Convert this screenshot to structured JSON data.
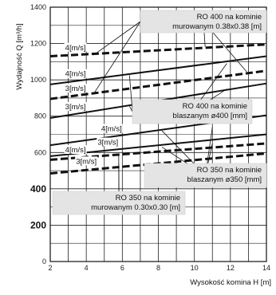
{
  "chart_data": {
    "type": "line",
    "xlabel": "Wysokość komina H [m]",
    "ylabel": "Wydajność Q [m³/h]",
    "xlim": [
      2,
      14
    ],
    "ylim": [
      0,
      1400
    ],
    "x_ticks": [
      "2",
      "4",
      "6",
      "8",
      "10",
      "12",
      "14"
    ],
    "y_ticks": [
      "0",
      "200",
      "400",
      "600",
      "800",
      "1000",
      "1200",
      "1400"
    ],
    "y_ticks_bold": [
      "200",
      "400"
    ],
    "grid": true,
    "x": [
      2,
      14
    ],
    "series": [
      {
        "group": "RO 400 na kominie murowanym 0.38x0.38 [m]",
        "label": "4[m/s]",
        "style": "dashed",
        "values": [
          1130,
          1195
        ]
      },
      {
        "group": "RO 400 na kominie murowanym 0.38x0.38 [m]",
        "label": "3[m/s]",
        "style": "dashed",
        "values": [
          895,
          1050
        ]
      },
      {
        "group": "RO 400 na kominie blaszanym ø400 [mm]",
        "label": "4[m/s]",
        "style": "solid",
        "values": [
          975,
          1130
        ]
      },
      {
        "group": "RO 400 na kominie blaszanym ø400 [mm]",
        "label": "3[m/s]",
        "style": "solid",
        "values": [
          790,
          980
        ]
      },
      {
        "group": "RO 350 na kominie blaszanym ø350 [mm]",
        "label": "4[m/s]",
        "style": "solid",
        "values": [
          640,
          805
        ]
      },
      {
        "group": "RO 350 na kominie blaszanym ø350 [mm]",
        "label": "3[m/s]",
        "style": "solid",
        "values": [
          580,
          700
        ]
      },
      {
        "group": "RO 350 na kominie murowanym 0.30x0.30 [m]",
        "label": "4[m/s]",
        "style": "dashed",
        "values": [
          560,
          650
        ]
      },
      {
        "group": "RO 350 na kominie murowanym 0.30x0.30 [m]",
        "label": "3[m/s]",
        "style": "dashed",
        "values": [
          485,
          595
        ]
      }
    ],
    "annotations": [
      {
        "name": "ro400-murowany",
        "lines": [
          "RO 400 na kominie",
          "murowanym 0.38x0.38 [m]"
        ]
      },
      {
        "name": "ro400-blaszany",
        "lines": [
          "RO 400 na kominie",
          "blaszanym ø400 [mm]"
        ]
      },
      {
        "name": "ro350-blaszany",
        "lines": [
          "RO 350 na kominie",
          "blaszanym ø350 [mm]"
        ]
      },
      {
        "name": "ro350-murowany",
        "lines": [
          "RO 350 na kominie",
          "murowanym 0.30x0.30 [m]"
        ]
      }
    ]
  }
}
